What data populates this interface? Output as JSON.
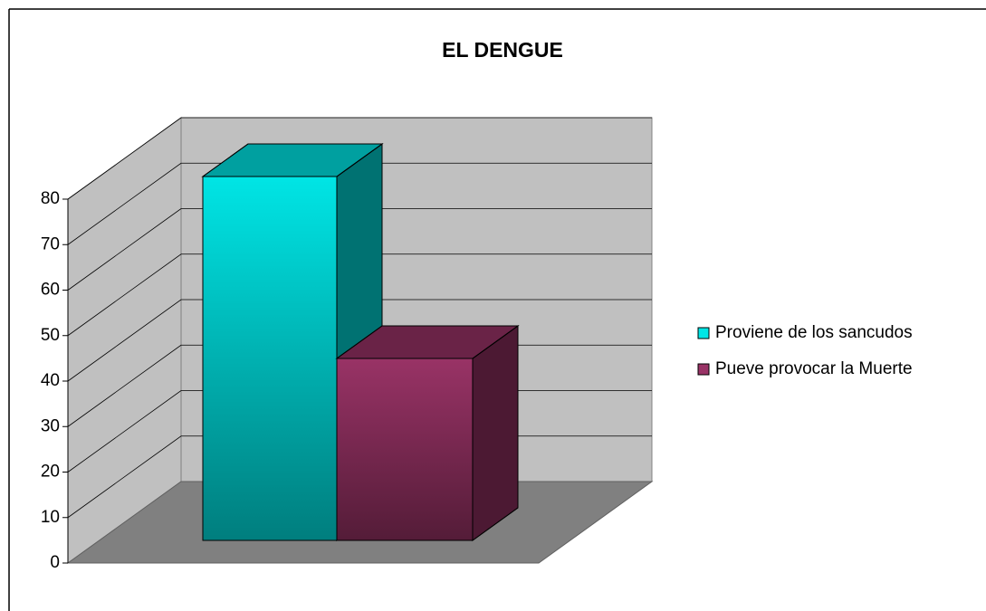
{
  "chart_data": {
    "type": "bar3d",
    "title": "EL DENGUE",
    "series": [
      {
        "name": "Proviene de los sancudos",
        "color": "#00e5e5",
        "values": [
          80
        ]
      },
      {
        "name": "Pueve provocar la Muerte",
        "color": "#993366",
        "values": [
          40
        ]
      }
    ],
    "ylim": [
      0,
      80
    ],
    "yticks": [
      0,
      10,
      20,
      30,
      40,
      50,
      60,
      70,
      80
    ],
    "grid": true,
    "legend": "right"
  }
}
